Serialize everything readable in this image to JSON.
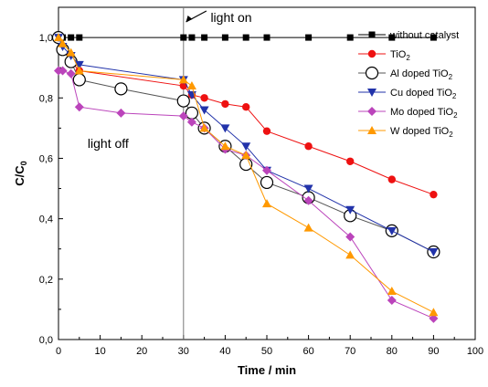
{
  "chart_data": {
    "type": "line",
    "xlabel": "Time / min",
    "ylabel": "C/C",
    "ylabel_sub": "0",
    "xlim": [
      0,
      100
    ],
    "ylim": [
      0.0,
      1.1
    ],
    "xticks": [
      0,
      10,
      20,
      30,
      40,
      50,
      60,
      70,
      80,
      90,
      100
    ],
    "yticks": [
      0.0,
      0.2,
      0.4,
      0.6,
      0.8,
      1.0
    ],
    "yticks_labels": [
      "0,0",
      "0,2",
      "0,4",
      "0,6",
      "0,8",
      "1,0"
    ],
    "grid": false,
    "legend_position": "top-right",
    "vline_x": 30,
    "annotations": [
      {
        "text": "light on",
        "x": 30,
        "y": 1.1
      },
      {
        "text": "light off",
        "x": 11,
        "y": 0.65
      }
    ],
    "series": [
      {
        "name": "without catalyst",
        "name_main": "without catalyst",
        "name_sub": "",
        "color": "#000000",
        "marker": "square",
        "line_color": "#000000",
        "x": [
          0,
          1,
          3,
          5,
          30,
          32,
          35,
          40,
          45,
          50,
          60,
          70,
          80,
          90
        ],
        "y": [
          1.0,
          1.0,
          1.0,
          1.0,
          1.0,
          1.0,
          1.0,
          1.0,
          1.0,
          1.0,
          1.0,
          1.0,
          1.0,
          1.0
        ]
      },
      {
        "name": "TiO2",
        "name_main": "TiO",
        "name_sub": "2",
        "color": "#ee1111",
        "marker": "circle",
        "line_color": "#ee1111",
        "x": [
          0,
          1,
          3,
          5,
          30,
          32,
          35,
          40,
          45,
          50,
          60,
          70,
          80,
          90
        ],
        "y": [
          1.0,
          0.97,
          0.92,
          0.89,
          0.84,
          0.81,
          0.8,
          0.78,
          0.77,
          0.69,
          0.64,
          0.59,
          0.53,
          0.48
        ]
      },
      {
        "name": "Al doped TiO2",
        "name_main": "Al doped TiO",
        "name_sub": "2",
        "color": "#000000",
        "marker": "open-circle",
        "line_color": "#555555",
        "x": [
          0,
          1,
          3,
          5,
          15,
          30,
          32,
          35,
          40,
          45,
          50,
          60,
          70,
          80,
          90
        ],
        "y": [
          1.0,
          0.96,
          0.92,
          0.86,
          0.83,
          0.79,
          0.75,
          0.7,
          0.64,
          0.58,
          0.52,
          0.47,
          0.41,
          0.36,
          0.29
        ]
      },
      {
        "name": "Cu doped TiO2",
        "name_main": "Cu doped TiO",
        "name_sub": "2",
        "color": "#2233aa",
        "marker": "triangle-down",
        "line_color": "#2233aa",
        "x": [
          0,
          1,
          3,
          5,
          30,
          32,
          35,
          40,
          45,
          50,
          60,
          70,
          80,
          90
        ],
        "y": [
          1.0,
          0.97,
          0.94,
          0.91,
          0.86,
          0.81,
          0.76,
          0.7,
          0.64,
          0.56,
          0.5,
          0.43,
          0.36,
          0.29
        ]
      },
      {
        "name": "Mo doped TiO2",
        "name_main": "Mo doped TiO",
        "name_sub": "2",
        "color": "#bb44bb",
        "marker": "diamond",
        "line_color": "#bb44bb",
        "x": [
          0,
          1,
          3,
          5,
          15,
          30,
          32,
          35,
          40,
          45,
          50,
          60,
          70,
          80,
          90
        ],
        "y": [
          0.89,
          0.89,
          0.88,
          0.77,
          0.75,
          0.74,
          0.72,
          0.7,
          0.63,
          0.61,
          0.56,
          0.46,
          0.34,
          0.13,
          0.07
        ]
      },
      {
        "name": "W doped TiO2",
        "name_main": "W doped TiO",
        "name_sub": "2",
        "color": "#ff9900",
        "marker": "triangle-up",
        "line_color": "#ff9900",
        "x": [
          0,
          1,
          3,
          5,
          30,
          32,
          35,
          40,
          45,
          50,
          60,
          70,
          80,
          90
        ],
        "y": [
          1.0,
          0.98,
          0.95,
          0.89,
          0.86,
          0.84,
          0.7,
          0.64,
          0.61,
          0.45,
          0.37,
          0.28,
          0.16,
          0.09
        ]
      }
    ]
  }
}
